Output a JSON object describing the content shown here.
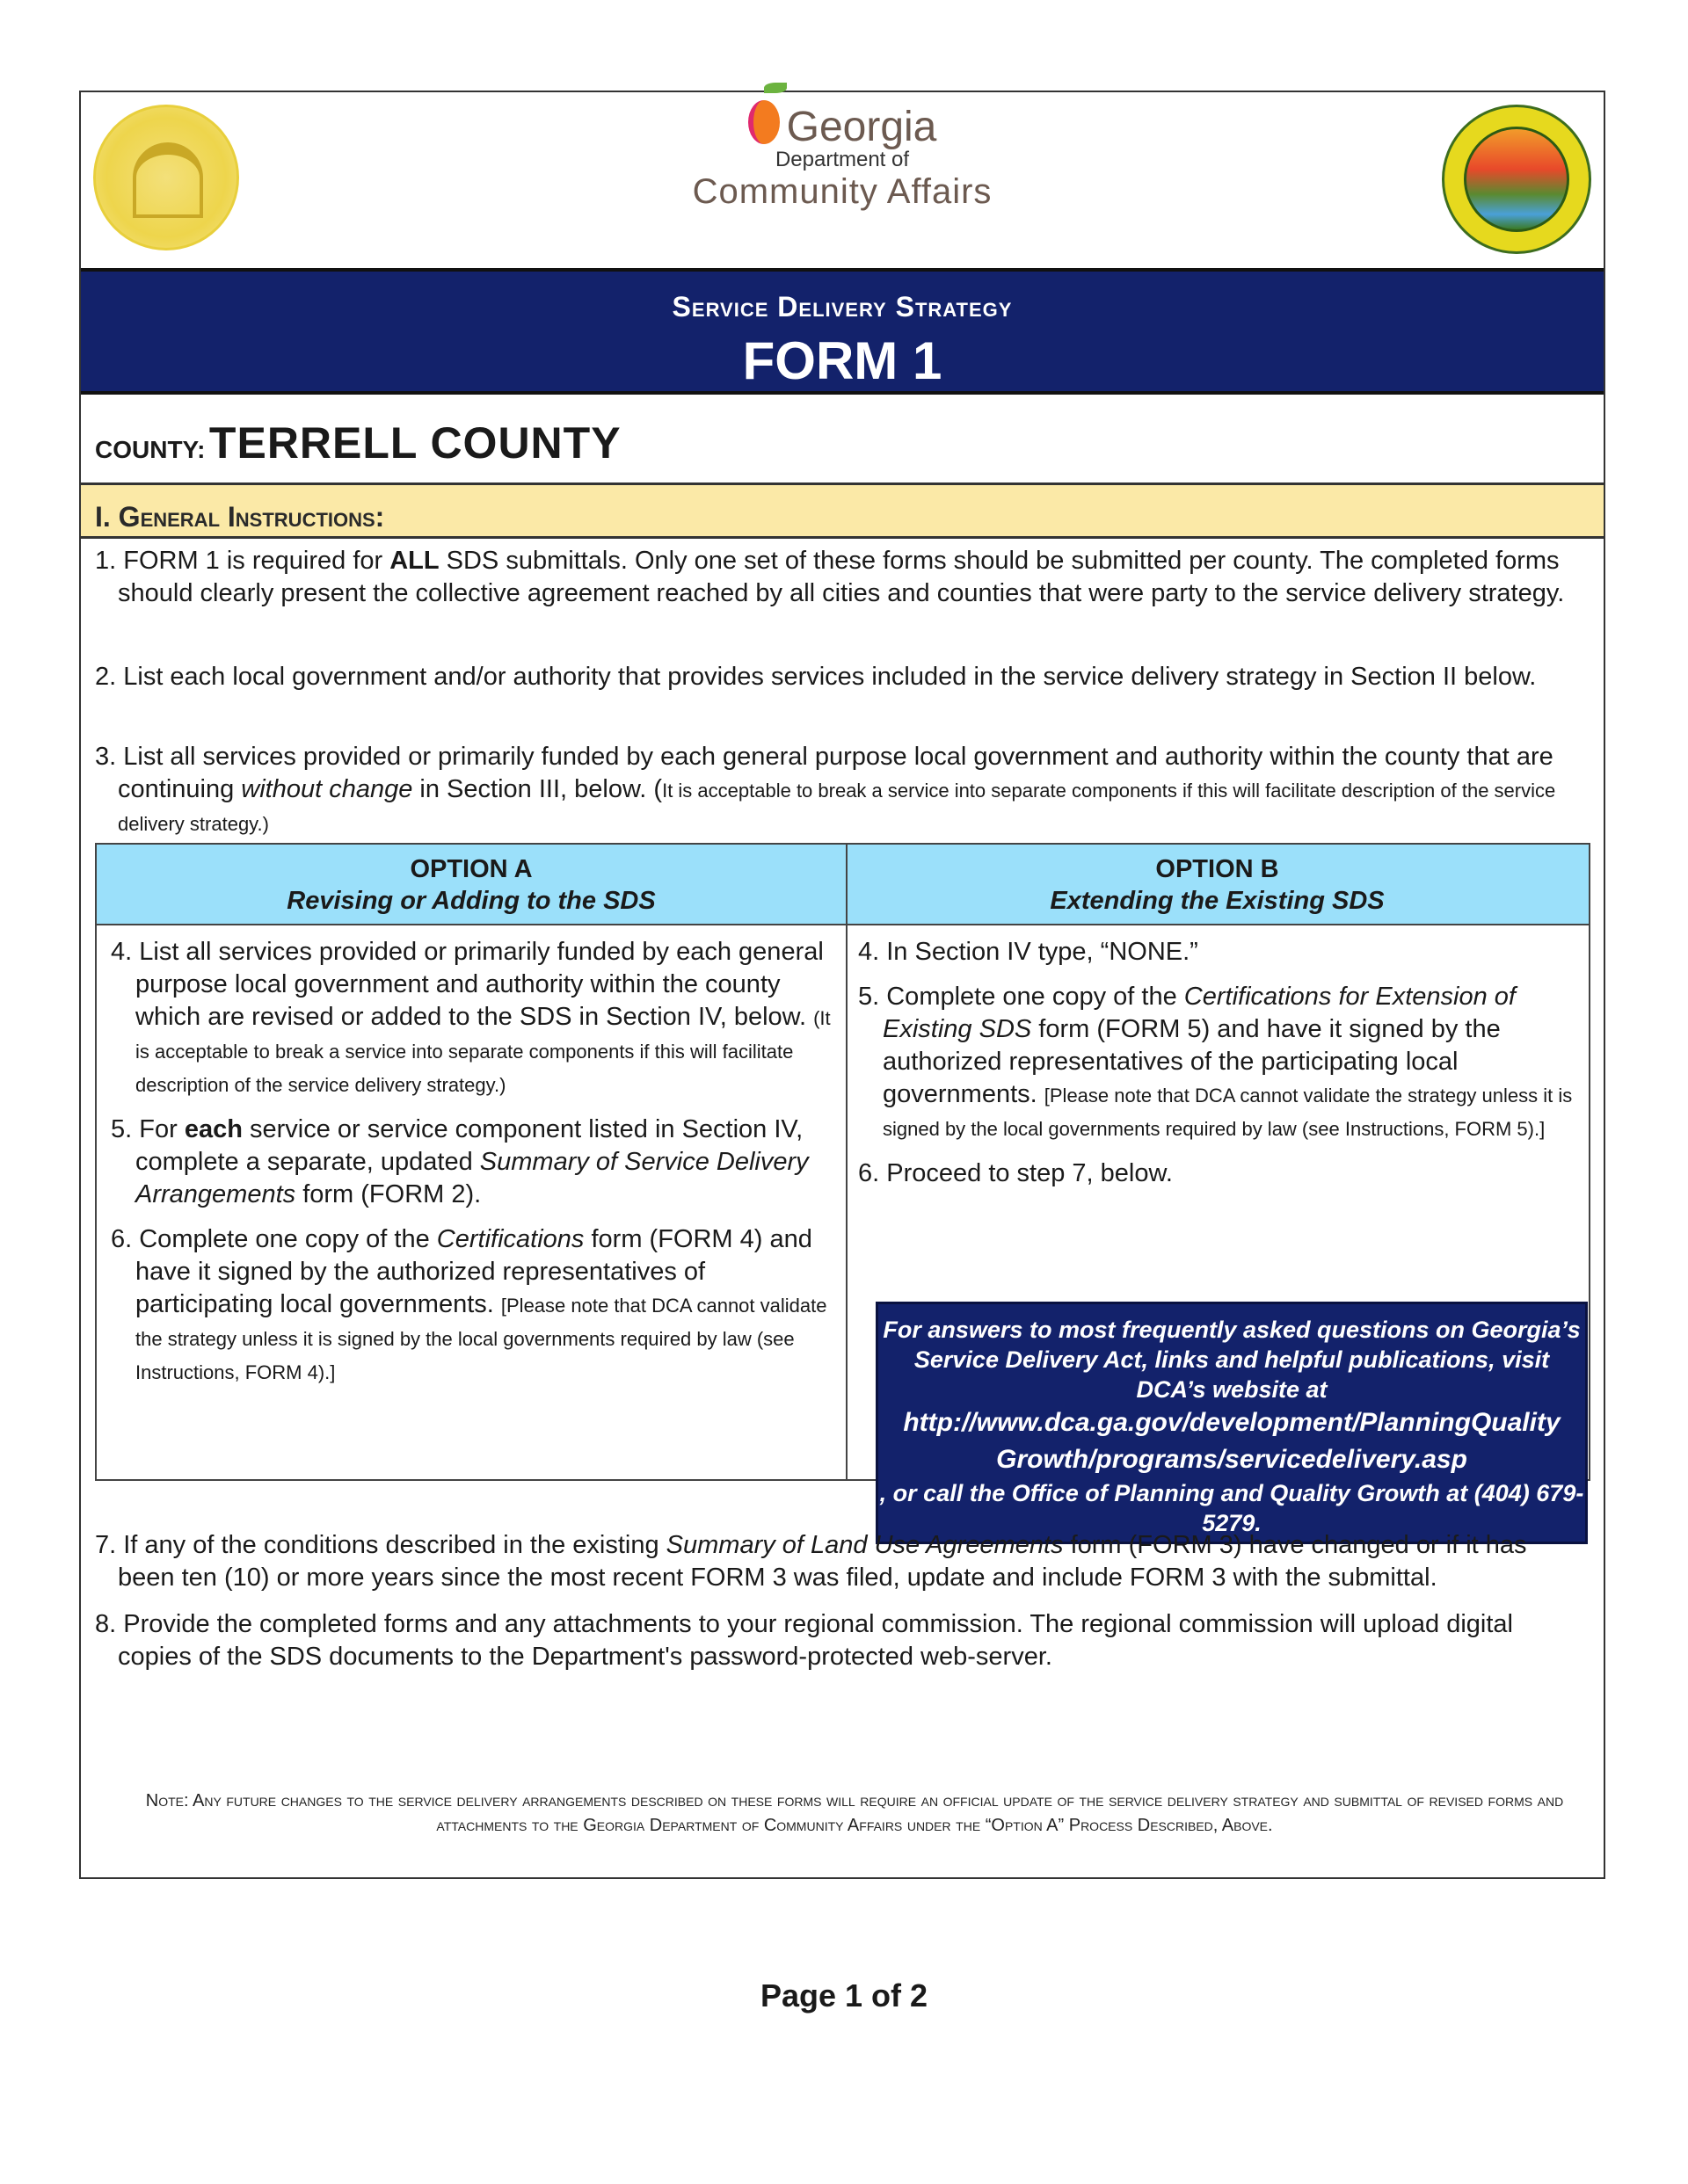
{
  "header": {
    "logo_text": "Georgia",
    "dept_of": "Department of",
    "community_affairs": "Community Affairs",
    "state_seal": "State of Georgia 1776",
    "dca_seal": "Georgia Department of Community Affairs - Planning and Environmental Management"
  },
  "banner": {
    "subtitle": "Service Delivery Strategy",
    "title": "FORM 1"
  },
  "county": {
    "label": "COUNTY:",
    "value": "TERRELL COUNTY"
  },
  "section": {
    "title": "I. General Instructions:"
  },
  "items": {
    "i1": {
      "pre": "1. FORM 1 is required for ",
      "bold": "ALL",
      "post": " SDS submittals.  Only one set of these forms should be submitted per county. The completed forms should clearly present the collective agreement reached by all cities and counties that were party to the service delivery strategy."
    },
    "i2": "2. List each local government and/or authority that provides services included in the service delivery strategy in Section II below.",
    "i3": {
      "pre": "3. List all services provided or primarily funded by each general purpose local government and authority within the county that are continuing ",
      "em": "without change",
      "post": " in Section III, below. (",
      "small": "It is acceptable to break a service into separate components if this will facilitate description of the service delivery strategy.)"
    },
    "i7": {
      "pre": "7. If any of the conditions described in the existing ",
      "em": "Summary of Land Use Agreements",
      "post": " form (FORM 3) have changed or if it has been ten (10) or more years since the most recent FORM 3 was filed, update and include FORM 3 with the submittal."
    },
    "i8": "8. Provide the completed forms and any attachments to your regional commission.  The regional commission will upload digital copies of the SDS documents to the Department's password-protected web-server."
  },
  "option_a": {
    "title": "OPTION A",
    "subtitle": "Revising or Adding to the SDS",
    "a4": {
      "text": "4. List all services provided or primarily funded by each general purpose local government and authority within the county which are revised or added to the SDS in Section IV, below. ",
      "small": "(It is acceptable to break a service into separate components if this will facilitate description of the service delivery strategy.)"
    },
    "a5": {
      "pre": "5. For ",
      "bold": "each",
      "mid": " service or service component listed in Section IV, complete a separate, updated ",
      "em": "Summary of Service Delivery Arrangements",
      "post": " form (FORM 2)."
    },
    "a6": {
      "pre": "6. Complete one copy of the ",
      "em": "Certifications",
      "post": " form (FORM 4) and have it signed by the authorized representatives of participating local governments. ",
      "small": "[Please note that DCA cannot validate the strategy unless it is signed by the local governments required by law (see Instructions, FORM 4).]"
    }
  },
  "option_b": {
    "title": "OPTION B",
    "subtitle": "Extending the Existing SDS",
    "b4": "4. In Section IV type, “NONE.”",
    "b5": {
      "pre": "5. Complete one copy of the ",
      "em": "Certifications for Extension of Existing SDS",
      "post": " form (FORM 5) and have it signed by the authorized representatives of the participating local governments. ",
      "small": "[Please note that DCA cannot validate the strategy unless it is signed by the local governments required by law (see Instructions, FORM 5).]"
    },
    "b6": "6.  Proceed to step 7, below.",
    "faq": {
      "pre": "For answers to most frequently asked questions on Georgia’s Service Delivery Act, links and helpful publications, visit DCA’s website at",
      "url": "http://www.dca.ga.gov/development/PlanningQualityGrowth/programs/servicedelivery.asp",
      "post": ", or call the Office of Planning and Quality Growth at (404) 679-5279."
    }
  },
  "note": "Note:  Any future changes to the service delivery arrangements described on these forms will require an official update of the service delivery strategy and submittal of revised forms and attachments to the Georgia Department of Community Affairs under the “Option A” Process Described, Above.",
  "footer": {
    "page": "Page 1 of 2"
  },
  "colors": {
    "banner": "#13226b",
    "section": "#fbe9a7",
    "option_header": "#9be0fa"
  }
}
